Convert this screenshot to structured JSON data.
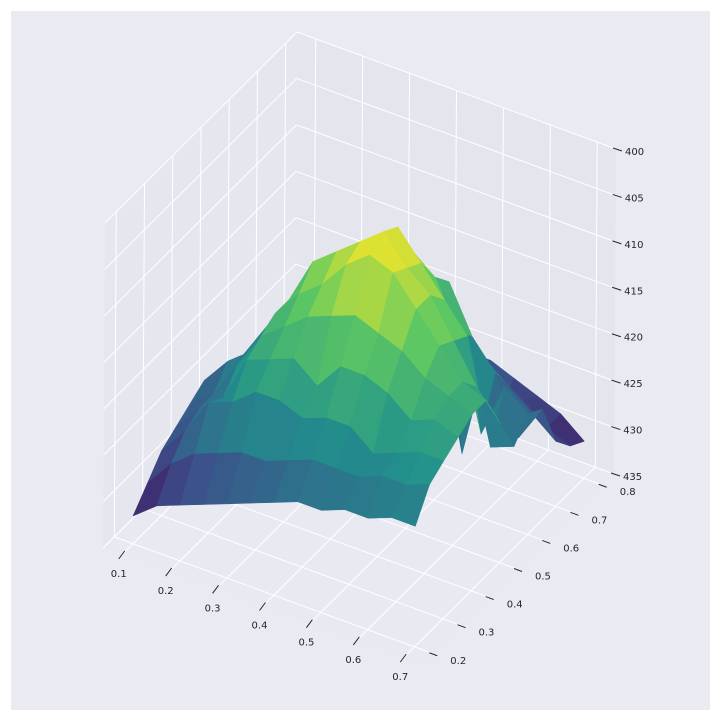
{
  "colors": {
    "page_bg": "#ffffff",
    "axes_bg": "#eaeaf2",
    "pane_back": "#e5e5ee",
    "pane_side": "#e6e6ef",
    "pane_floor": "#e9e9f1",
    "grid": "#ffffff",
    "tick": "#262626",
    "colormap": [
      "#440154",
      "#3b528b",
      "#21918c",
      "#5ec962",
      "#fde725"
    ]
  },
  "chart_data": {
    "type": "surface",
    "colormap": "viridis",
    "title": "",
    "xlabel": "",
    "ylabel": "",
    "zlabel": "",
    "xlim": [
      0.06,
      0.74
    ],
    "ylim": [
      0.16,
      0.84
    ],
    "zlim": [
      -435,
      -400
    ],
    "x_ticks": [
      0.1,
      0.2,
      0.3,
      0.4,
      0.5,
      0.6,
      0.7
    ],
    "y_ticks": [
      0.2,
      0.3,
      0.4,
      0.5,
      0.6,
      0.7,
      0.8
    ],
    "z_ticks": [
      -435,
      -430,
      -425,
      -420,
      -415,
      -410,
      -405,
      -400
    ],
    "x_tick_labels": [
      "0.1",
      "0.2",
      "0.3",
      "0.4",
      "0.5",
      "0.6",
      "0.7"
    ],
    "y_tick_labels": [
      "0.2",
      "0.3",
      "0.4",
      "0.5",
      "0.6",
      "0.7",
      "0.8"
    ],
    "z_tick_labels": [
      "435",
      "430",
      "425",
      "420",
      "415",
      "410",
      "405",
      "400"
    ],
    "grid": true,
    "surface": {
      "x": [
        0.1,
        0.15,
        0.2,
        0.25,
        0.3,
        0.35,
        0.4,
        0.45,
        0.5,
        0.55,
        0.6,
        0.65,
        0.7
      ],
      "y": [
        0.2,
        0.25,
        0.3,
        0.35,
        0.4,
        0.45,
        0.5,
        0.55,
        0.6,
        0.65,
        0.7,
        0.75,
        0.8
      ],
      "z": [
        [
          -432,
          -430,
          -429,
          -428,
          -427,
          -426,
          -425,
          -424,
          -424,
          -423,
          -423,
          -422,
          -422
        ],
        [
          -430,
          -427,
          -425,
          -424,
          -423,
          -423,
          -422,
          -421,
          -421,
          -421,
          -420,
          -420,
          -419
        ],
        [
          -428,
          -425,
          -421,
          -420,
          -418,
          -418,
          -419,
          -418,
          -418,
          -420,
          -419,
          -418,
          -418
        ],
        [
          -427,
          -424,
          -422,
          -417,
          -416,
          -415,
          -417,
          -414,
          -414,
          -415,
          -417,
          -416,
          -417
        ],
        [
          -426,
          -424,
          -420,
          -416,
          -414,
          -412,
          -411,
          -410,
          -411,
          -412,
          -414,
          -415,
          -416
        ],
        [
          -425,
          -422,
          -420,
          -415,
          -412,
          -410,
          -407,
          -405,
          -406,
          -409,
          -412,
          -415,
          -416
        ],
        [
          -427,
          -423,
          -419,
          -415,
          -410,
          -408,
          -406,
          -404,
          -407,
          -409,
          -413,
          -417,
          -420
        ],
        [
          -428,
          -429,
          -423,
          -418,
          -411,
          -409,
          -407,
          -405,
          -408,
          -411,
          -414,
          -425,
          -424
        ],
        [
          -429,
          -427,
          -424,
          -419,
          -414,
          -412,
          -410,
          -409,
          -411,
          -416,
          -426,
          -420,
          -422
        ],
        [
          -430,
          -428,
          -426,
          -422,
          -419,
          -417,
          -416,
          -431,
          -413,
          -418,
          -421,
          -427,
          -423
        ],
        [
          -431,
          -429,
          -428,
          -425,
          -430,
          -421,
          -424,
          -420,
          -433,
          -422,
          -424,
          -426,
          -428
        ],
        [
          -432,
          -431,
          -429,
          -428,
          -426,
          -434,
          -425,
          -423,
          -424,
          -429,
          -427,
          -429,
          -430
        ],
        [
          -433,
          -432,
          -431,
          -430,
          -429,
          -428,
          -427,
          -426,
          -426,
          -427,
          -428,
          -429,
          -431
        ]
      ]
    }
  }
}
